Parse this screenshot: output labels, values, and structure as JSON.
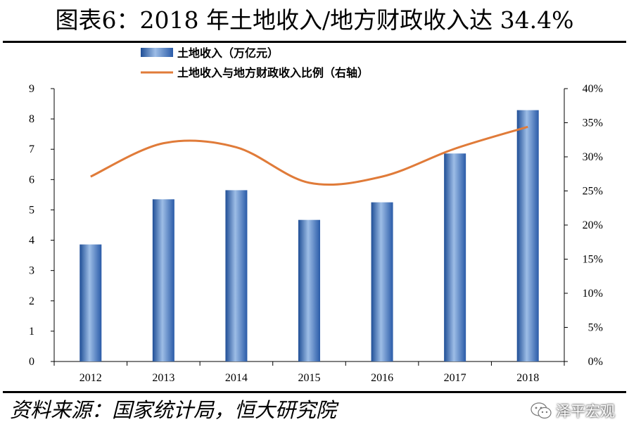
{
  "title": "图表6：2018 年土地收入/地方财政收入达 34.4%",
  "source": "资料来源：国家统计局，恒大研究院",
  "watermark": "泽平宏观",
  "chart_data": {
    "type": "bar",
    "categories": [
      "2012",
      "2013",
      "2014",
      "2015",
      "2016",
      "2017",
      "2018"
    ],
    "series": [
      {
        "name": "土地收入（万亿元）",
        "type": "bar",
        "axis": "left",
        "color": "#4F81BD",
        "values": [
          3.86,
          5.35,
          5.65,
          4.67,
          5.25,
          6.86,
          8.29
        ]
      },
      {
        "name": "土地收入与地方财政收入比例（右轴）",
        "type": "line",
        "axis": "right",
        "color": "#E07B39",
        "values": [
          27.1,
          32.0,
          31.4,
          26.2,
          27.1,
          31.2,
          34.4
        ]
      }
    ],
    "y_left": {
      "ylim": [
        0,
        9
      ],
      "ticks": [
        "0",
        "1",
        "2",
        "3",
        "4",
        "5",
        "6",
        "7",
        "8",
        "9"
      ]
    },
    "y_right": {
      "ylim": [
        0,
        40
      ],
      "ticks": [
        "0%",
        "5%",
        "10%",
        "15%",
        "20%",
        "25%",
        "30%",
        "35%",
        "40%"
      ]
    },
    "grid": false,
    "legend": "top-left"
  }
}
